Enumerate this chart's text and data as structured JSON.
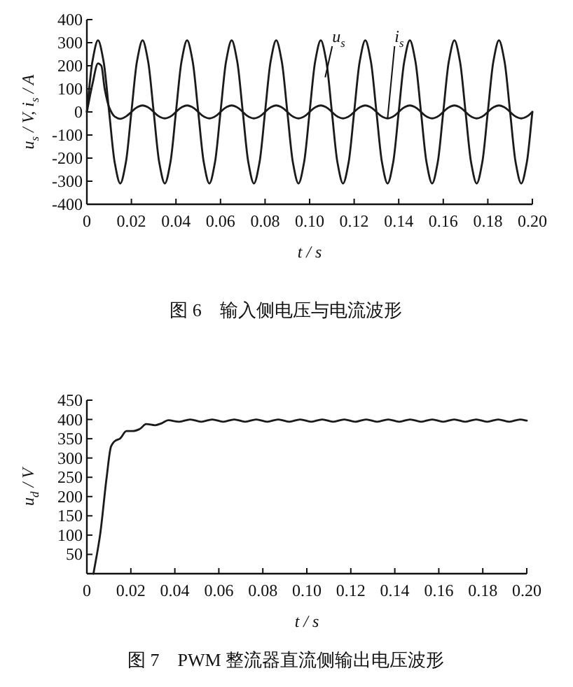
{
  "chart_data": [
    {
      "type": "line",
      "title": "图 6　输入侧电压与电流波形",
      "xlabel": "t / s",
      "ylabel": "u$_{s}$ / V, i$_{s}$ / A",
      "xlim": [
        0,
        0.2
      ],
      "ylim": [
        -400,
        400
      ],
      "xticks": [
        {
          "value": 0,
          "label": "0"
        },
        {
          "value": 0.02,
          "label": "0.02"
        },
        {
          "value": 0.04,
          "label": "0.04"
        },
        {
          "value": 0.06,
          "label": "0.06"
        },
        {
          "value": 0.08,
          "label": "0.08"
        },
        {
          "value": 0.1,
          "label": "0.10"
        },
        {
          "value": 0.12,
          "label": "0.12"
        },
        {
          "value": 0.14,
          "label": "0.14"
        },
        {
          "value": 0.16,
          "label": "0.16"
        },
        {
          "value": 0.18,
          "label": "0.18"
        },
        {
          "value": 0.2,
          "label": "0.20"
        }
      ],
      "yticks": [
        -400,
        -300,
        -200,
        -100,
        0,
        100,
        200,
        300,
        400
      ],
      "series": [
        {
          "color": "#1a1a1a",
          "x": [
            0,
            0.0025,
            0.005,
            0.0075,
            0.01,
            0.0125,
            0.015,
            0.0175,
            0.02,
            0.0225,
            0.025,
            0.0275,
            0.03,
            0.0325,
            0.035,
            0.0375,
            0.04,
            0.0425,
            0.045,
            0.0475,
            0.05,
            0.0525,
            0.055,
            0.0575,
            0.06,
            0.0625,
            0.065,
            0.0675,
            0.07,
            0.0725,
            0.075,
            0.0775,
            0.08,
            0.0825,
            0.085,
            0.0875,
            0.09,
            0.0925,
            0.095,
            0.0975,
            0.1,
            0.1025,
            0.105,
            0.1075,
            0.11,
            0.1125,
            0.115,
            0.1175,
            0.12,
            0.1225,
            0.125,
            0.1275,
            0.13,
            0.1325,
            0.135,
            0.1375,
            0.14,
            0.1425,
            0.145,
            0.1475,
            0.15,
            0.1525,
            0.155,
            0.1575,
            0.16,
            0.1625,
            0.165,
            0.1675,
            0.17,
            0.1725,
            0.175,
            0.1775,
            0.18,
            0.1825,
            0.185,
            0.1875,
            0.19,
            0.1925,
            0.195,
            0.1975,
            0.2
          ],
          "values": [
            0,
            219,
            310,
            219,
            0,
            -219,
            -310,
            -219,
            0,
            219,
            310,
            219,
            0,
            -219,
            -310,
            -219,
            0,
            219,
            310,
            219,
            0,
            -219,
            -310,
            -219,
            0,
            219,
            310,
            219,
            0,
            -219,
            -310,
            -219,
            0,
            219,
            310,
            219,
            0,
            -219,
            -310,
            -219,
            0,
            219,
            310,
            219,
            0,
            -219,
            -310,
            -219,
            0,
            219,
            310,
            219,
            0,
            -219,
            -310,
            -219,
            0,
            219,
            310,
            219,
            0,
            -219,
            -310,
            -219,
            0,
            219,
            310,
            219,
            0,
            -219,
            -310,
            -219,
            0,
            219,
            310,
            219,
            0,
            -219,
            -310,
            -219,
            0
          ]
        },
        {
          "color": "#1a1a1a",
          "x": [
            0,
            0.0025,
            0.005,
            0.0065,
            0.008,
            0.01,
            0.0125,
            0.015,
            0.0175,
            0.02,
            0.0225,
            0.025,
            0.0275,
            0.03,
            0.0325,
            0.035,
            0.0375,
            0.04,
            0.0425,
            0.045,
            0.0475,
            0.05,
            0.0525,
            0.055,
            0.0575,
            0.06,
            0.0625,
            0.065,
            0.0675,
            0.07,
            0.0725,
            0.075,
            0.0775,
            0.08,
            0.0825,
            0.085,
            0.0875,
            0.09,
            0.0925,
            0.095,
            0.0975,
            0.1,
            0.1025,
            0.105,
            0.1075,
            0.11,
            0.1125,
            0.115,
            0.1175,
            0.12,
            0.1225,
            0.125,
            0.1275,
            0.13,
            0.1325,
            0.135,
            0.1375,
            0.14,
            0.1425,
            0.145,
            0.1475,
            0.15,
            0.1525,
            0.155,
            0.1575,
            0.16,
            0.1625,
            0.165,
            0.1675,
            0.17,
            0.1725,
            0.175,
            0.1775,
            0.18,
            0.1825,
            0.185,
            0.1875,
            0.19,
            0.1925,
            0.195,
            0.1975,
            0.2
          ],
          "values": [
            0,
            120,
            210,
            200,
            100,
            20,
            -20,
            -30,
            -20,
            0,
            20,
            28,
            20,
            0,
            -20,
            -28,
            -20,
            0,
            20,
            28,
            20,
            0,
            -20,
            -28,
            -20,
            0,
            20,
            28,
            20,
            0,
            -20,
            -28,
            -20,
            0,
            20,
            28,
            20,
            0,
            -20,
            -28,
            -20,
            0,
            20,
            28,
            20,
            0,
            -20,
            -28,
            -20,
            0,
            20,
            28,
            20,
            0,
            -20,
            -28,
            -20,
            0,
            20,
            28,
            20,
            0,
            -20,
            -28,
            -20,
            0,
            20,
            28,
            20,
            0,
            -20,
            -28,
            -20,
            0,
            20,
            28,
            20,
            0,
            -20,
            -28,
            -20,
            0
          ]
        }
      ],
      "annotations": [
        {
          "text": "u$_{s}$",
          "x": 0.107,
          "y": 150
        },
        {
          "text": "i$_{s}$",
          "x": 0.135,
          "y": -28
        }
      ]
    },
    {
      "type": "line",
      "title": "图 7　PWM 整流器直流侧输出电压波形",
      "xlabel": "t / s",
      "ylabel": "u$_{d}$ / V",
      "xlim": [
        0,
        0.2
      ],
      "ylim": [
        0,
        450
      ],
      "xticks": [
        {
          "value": 0,
          "label": "0"
        },
        {
          "value": 0.02,
          "label": "0.02"
        },
        {
          "value": 0.04,
          "label": "0.04"
        },
        {
          "value": 0.06,
          "label": "0.06"
        },
        {
          "value": 0.08,
          "label": "0.08"
        },
        {
          "value": 0.1,
          "label": "0.10"
        },
        {
          "value": 0.12,
          "label": "0.12"
        },
        {
          "value": 0.14,
          "label": "0.14"
        },
        {
          "value": 0.16,
          "label": "0.16"
        },
        {
          "value": 0.18,
          "label": "0.18"
        },
        {
          "value": 0.2,
          "label": "0.20"
        }
      ],
      "yticks": [
        50,
        100,
        150,
        200,
        250,
        300,
        350,
        400,
        450
      ],
      "series": [
        {
          "color": "#1a1a1a",
          "x": [
            0.003,
            0.006,
            0.009,
            0.011,
            0.013,
            0.015,
            0.018,
            0.021,
            0.024,
            0.027,
            0.031,
            0.034,
            0.037,
            0.042,
            0.047,
            0.052,
            0.057,
            0.062,
            0.067,
            0.072,
            0.077,
            0.082,
            0.087,
            0.092,
            0.097,
            0.102,
            0.107,
            0.112,
            0.117,
            0.122,
            0.127,
            0.132,
            0.137,
            0.142,
            0.147,
            0.152,
            0.157,
            0.162,
            0.167,
            0.172,
            0.177,
            0.182,
            0.187,
            0.192,
            0.197,
            0.2
          ],
          "values": [
            0,
            100,
            250,
            330,
            345,
            350,
            370,
            370,
            375,
            388,
            385,
            390,
            398,
            394,
            400,
            394,
            400,
            394,
            400,
            394,
            400,
            394,
            400,
            394,
            400,
            394,
            400,
            394,
            400,
            394,
            400,
            394,
            400,
            394,
            400,
            394,
            400,
            394,
            400,
            394,
            400,
            394,
            400,
            394,
            400,
            397
          ]
        }
      ]
    }
  ]
}
